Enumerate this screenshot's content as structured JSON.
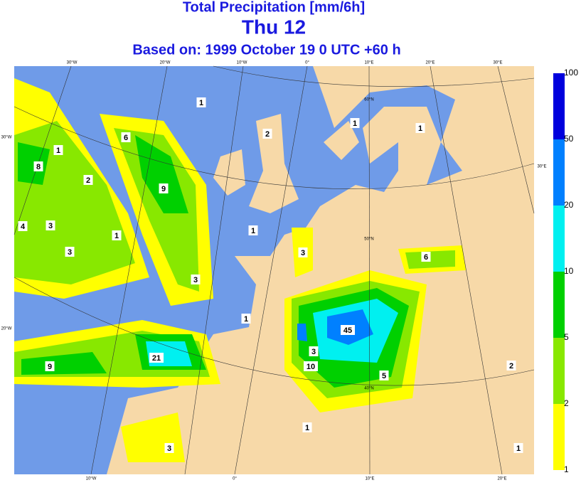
{
  "header": {
    "title": "Total Precipitation [mm/6h]",
    "day": "Thu 12",
    "based_on": "Based on: 1999 October 19   0 UTC  +60 h"
  },
  "legend": {
    "levels": [
      1,
      2,
      5,
      10,
      20,
      50,
      100
    ]
  },
  "graticule_labels": [
    "30°W",
    "20°W",
    "10°W",
    "0°",
    "10°E",
    "20°E",
    "30°E",
    "10°W",
    "0°",
    "10°E",
    "20°E",
    "30°W",
    "20°W",
    "60°N",
    "50°N",
    "40°N",
    "30°E"
  ],
  "map_labels": [
    "1",
    "2",
    "1",
    "1",
    "6",
    "1",
    "8",
    "2",
    "9",
    "4",
    "3",
    "1",
    "3",
    "1",
    "3",
    "6",
    "3",
    "1",
    "45",
    "21",
    "3",
    "9",
    "10",
    "5",
    "2",
    "1",
    "3",
    "1"
  ]
}
